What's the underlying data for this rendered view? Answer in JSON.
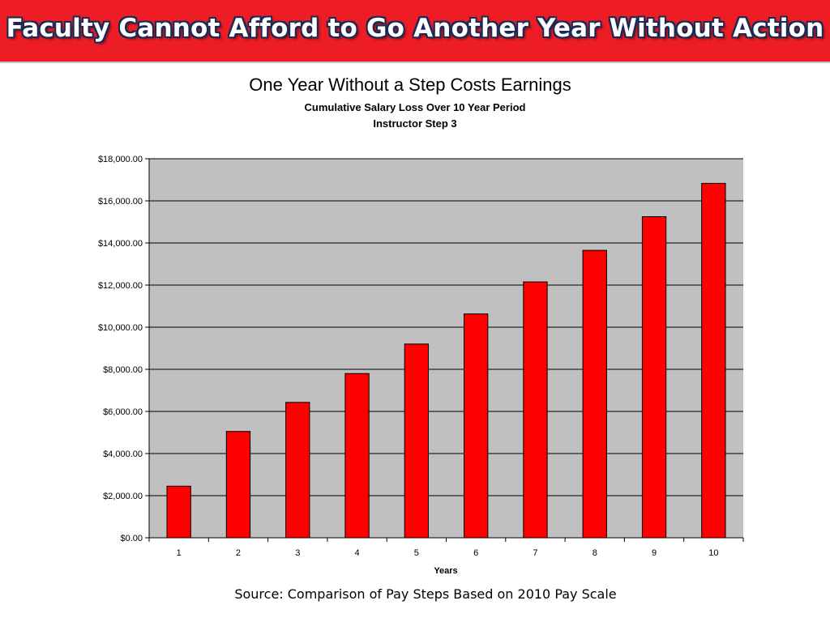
{
  "slide": {
    "banner_title": "Faculty Cannot Afford to Go Another Year Without Action",
    "source_note": "Source: Comparison of Pay Steps Based on 2010 Pay Scale"
  },
  "colors": {
    "banner_background": "#ee1c25",
    "banner_title_outline": "#1a2a55",
    "plot_background": "#c0c0c0",
    "bar_fill": "#ff0000",
    "bar_outline": "#000000",
    "gridline": "#000000"
  },
  "chart_data": {
    "type": "bar",
    "title": "One Year Without a Step Costs Earnings",
    "subtitle": [
      "Cumulative Salary Loss Over 10 Year Period",
      "Instructor Step 3"
    ],
    "xlabel": "Years",
    "ylabel": "",
    "categories": [
      "1",
      "2",
      "3",
      "4",
      "5",
      "6",
      "7",
      "8",
      "9",
      "10"
    ],
    "values": [
      2450,
      5050,
      6430,
      7800,
      9200,
      10630,
      12150,
      13650,
      15250,
      16830
    ],
    "ylim": [
      0,
      18000
    ],
    "ytick_step": 2000,
    "ytick_labels": [
      "$0.00",
      "$2,000.00",
      "$4,000.00",
      "$6,000.00",
      "$8,000.00",
      "$10,000.00",
      "$12,000.00",
      "$14,000.00",
      "$16,000.00",
      "$18,000.00"
    ],
    "grid": true,
    "legend": "none"
  }
}
